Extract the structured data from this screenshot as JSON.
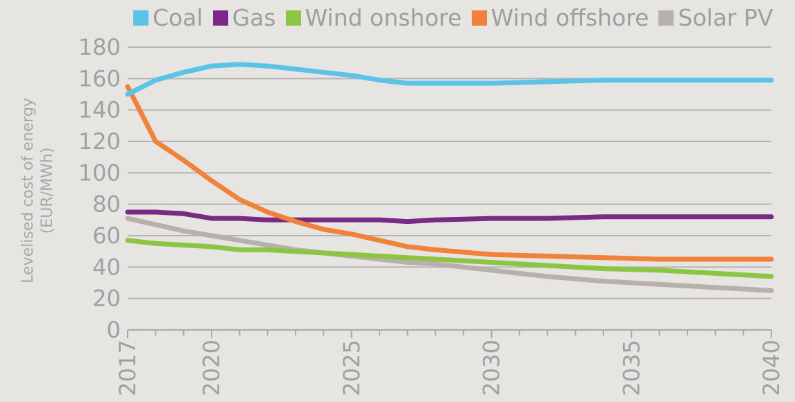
{
  "chart_data": {
    "type": "line",
    "title": "",
    "xlabel": "",
    "ylabel": "Levelised cost of energy",
    "ylabel_unit": "(EUR/MWh)",
    "xlim": [
      2017,
      2040
    ],
    "ylim": [
      0,
      180
    ],
    "yticks": [
      0,
      20,
      40,
      60,
      80,
      100,
      120,
      140,
      160,
      180
    ],
    "xticks": [
      "2017",
      "2020",
      "2025",
      "2030",
      "2035",
      "2040"
    ],
    "grid": true,
    "legend_position": "top",
    "series": [
      {
        "name": "Coal",
        "color": "#5bc4e6",
        "x": [
          2017,
          2018,
          2019,
          2020,
          2021,
          2022,
          2023,
          2024,
          2025,
          2026,
          2027,
          2028,
          2030,
          2032,
          2034,
          2036,
          2038,
          2040
        ],
        "y": [
          150,
          159,
          164,
          168,
          169,
          168,
          166,
          164,
          162,
          159,
          157,
          157,
          157,
          158,
          159,
          159,
          159,
          159
        ]
      },
      {
        "name": "Gas",
        "color": "#7a2a86",
        "x": [
          2017,
          2018,
          2019,
          2020,
          2021,
          2022,
          2023,
          2024,
          2025,
          2026,
          2027,
          2028,
          2030,
          2032,
          2034,
          2036,
          2038,
          2040
        ],
        "y": [
          75,
          75,
          74,
          71,
          71,
          70,
          70,
          70,
          70,
          70,
          69,
          70,
          71,
          71,
          72,
          72,
          72,
          72
        ]
      },
      {
        "name": "Wind onshore",
        "color": "#8cc541",
        "x": [
          2017,
          2018,
          2019,
          2020,
          2021,
          2022,
          2023,
          2024,
          2025,
          2026,
          2027,
          2028,
          2030,
          2032,
          2034,
          2036,
          2038,
          2040
        ],
        "y": [
          57,
          55,
          54,
          53,
          51,
          51,
          50,
          49,
          48,
          47,
          46,
          45,
          43,
          41,
          39,
          38,
          36,
          34
        ]
      },
      {
        "name": "Wind offshore",
        "color": "#f0823a",
        "x": [
          2017,
          2018,
          2019,
          2020,
          2021,
          2022,
          2023,
          2024,
          2025,
          2026,
          2027,
          2028,
          2030,
          2032,
          2034,
          2036,
          2038,
          2040
        ],
        "y": [
          155,
          120,
          108,
          95,
          83,
          75,
          69,
          64,
          61,
          57,
          53,
          51,
          48,
          47,
          46,
          45,
          45,
          45
        ]
      },
      {
        "name": "Solar PV",
        "color": "#b8b0ac",
        "x": [
          2017,
          2018,
          2019,
          2020,
          2021,
          2022,
          2023,
          2024,
          2025,
          2026,
          2027,
          2028,
          2030,
          2032,
          2034,
          2036,
          2038,
          2040
        ],
        "y": [
          71,
          67,
          63,
          60,
          57,
          54,
          51,
          49,
          47,
          45,
          43,
          42,
          38,
          34,
          31,
          29,
          27,
          25
        ]
      }
    ]
  }
}
